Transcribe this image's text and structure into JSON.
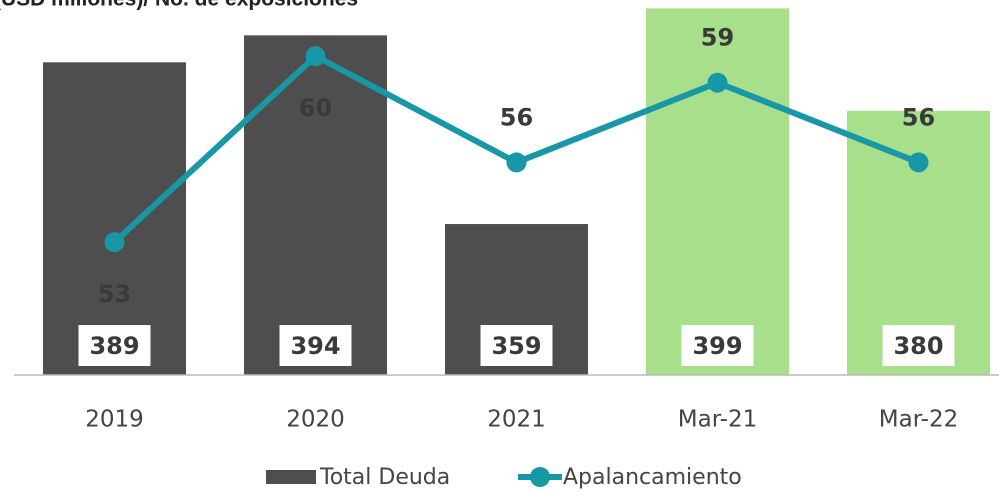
{
  "chart_data": {
    "type": "bar_line",
    "title": "(USD millones)/ No. de exposiciones",
    "categories": [
      "2019",
      "2020",
      "2021",
      "Mar-21",
      "Mar-22"
    ],
    "series": [
      {
        "name": "Total Deuda",
        "type": "bar",
        "colors": [
          "#4d4e4d",
          "#4d4e4d",
          "#4d4e4d",
          "#a8df8b",
          "#a8df8b"
        ],
        "values": [
          389,
          394,
          359,
          399,
          380
        ]
      },
      {
        "name": "Apalancamiento",
        "type": "line",
        "axis": "y2",
        "color": "#1897a7",
        "values": [
          53,
          60,
          56,
          59,
          56
        ]
      }
    ],
    "ylim": [
      331,
      400
    ],
    "y2lim": [
      48,
      62
    ],
    "legend": "bottom"
  }
}
